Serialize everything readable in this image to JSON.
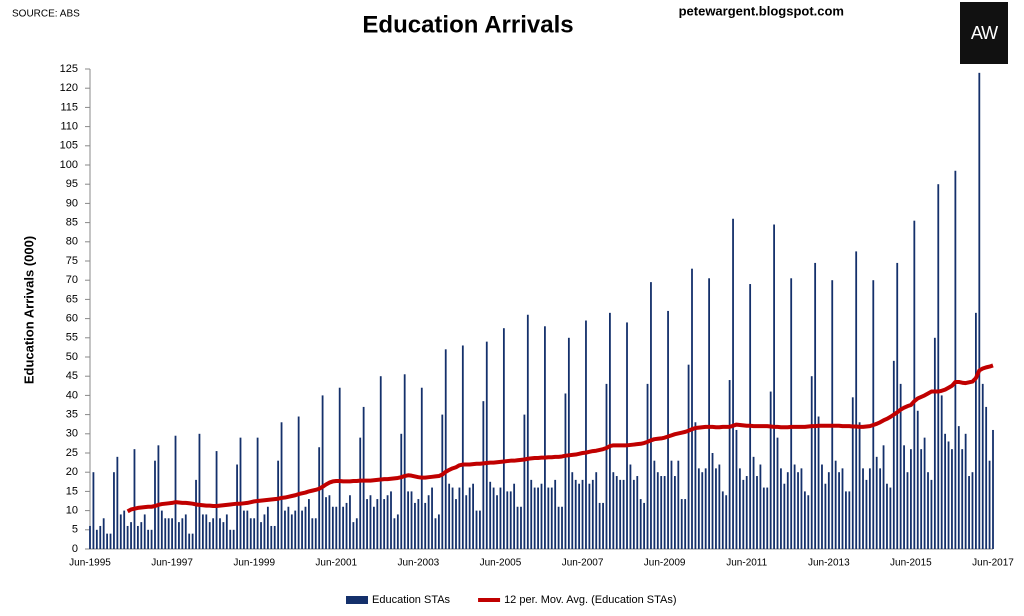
{
  "chart_data": {
    "type": "bar_line",
    "title": "Education Arrivals",
    "source": "SOURCE: ABS",
    "watermark": "petewargent.blogspot.com",
    "logo": "AW",
    "y_axis_label": "Education Arrivals (000)",
    "ylim": [
      0,
      125
    ],
    "yticks": [
      0,
      5,
      10,
      15,
      20,
      25,
      30,
      35,
      40,
      45,
      50,
      55,
      60,
      65,
      70,
      75,
      80,
      85,
      90,
      95,
      100,
      105,
      110,
      115,
      120,
      125
    ],
    "grid": false,
    "legend": "bottom",
    "categories": [
      "Jun-1995",
      null,
      null,
      null,
      null,
      null,
      null,
      null,
      null,
      null,
      null,
      null,
      null,
      null,
      null,
      null,
      null,
      null,
      null,
      null,
      null,
      null,
      null,
      null,
      "Jun-1997",
      null,
      null,
      null,
      null,
      null,
      null,
      null,
      null,
      null,
      null,
      null,
      null,
      null,
      null,
      null,
      null,
      null,
      null,
      null,
      null,
      null,
      null,
      null,
      "Jun-1999",
      null,
      null,
      null,
      null,
      null,
      null,
      null,
      null,
      null,
      null,
      null,
      null,
      null,
      null,
      null,
      null,
      null,
      null,
      null,
      null,
      null,
      null,
      null,
      "Jun-2001",
      null,
      null,
      null,
      null,
      null,
      null,
      null,
      null,
      null,
      null,
      null,
      null,
      null,
      null,
      null,
      null,
      null,
      null,
      null,
      null,
      null,
      null,
      null,
      "Jun-2003",
      null,
      null,
      null,
      null,
      null,
      null,
      null,
      null,
      null,
      null,
      null,
      null,
      null,
      null,
      null,
      null,
      null,
      null,
      null,
      null,
      null,
      null,
      null,
      "Jun-2005",
      null,
      null,
      null,
      null,
      null,
      null,
      null,
      null,
      null,
      null,
      null,
      null,
      null,
      null,
      null,
      null,
      null,
      null,
      null,
      null,
      null,
      null,
      null,
      "Jun-2007",
      null,
      null,
      null,
      null,
      null,
      null,
      null,
      null,
      null,
      null,
      null,
      null,
      null,
      null,
      null,
      null,
      null,
      null,
      null,
      null,
      null,
      null,
      null,
      "Jun-2009",
      null,
      null,
      null,
      null,
      null,
      null,
      null,
      null,
      null,
      null,
      null,
      null,
      null,
      null,
      null,
      null,
      null,
      null,
      null,
      null,
      null,
      null,
      null,
      "Jun-2011",
      null,
      null,
      null,
      null,
      null,
      null,
      null,
      null,
      null,
      null,
      null,
      null,
      null,
      null,
      null,
      null,
      null,
      null,
      null,
      null,
      null,
      null,
      null,
      "Jun-2013",
      null,
      null,
      null,
      null,
      null,
      null,
      null,
      null,
      null,
      null,
      null,
      null,
      null,
      null,
      null,
      null,
      null,
      null,
      null,
      null,
      null,
      null,
      null,
      "Jun-2015",
      null,
      null,
      null,
      null,
      null,
      null,
      null,
      null,
      null,
      null,
      null,
      null,
      null,
      null,
      null,
      null,
      null,
      null,
      null,
      null,
      null,
      null,
      null,
      "Jun-2017"
    ],
    "series": [
      {
        "name": "Education STAs",
        "type": "bar",
        "color": "#14306b",
        "values": [
          6,
          20,
          5,
          6,
          8,
          4,
          4,
          20,
          24,
          9,
          10,
          6,
          7,
          26,
          6,
          7,
          9,
          5,
          5,
          23,
          27,
          10,
          8,
          8,
          8,
          29.5,
          7,
          8,
          9,
          4,
          4,
          18,
          30,
          9,
          9,
          7,
          8,
          25.5,
          8,
          7,
          9,
          5,
          5,
          22,
          29,
          10,
          10,
          8,
          8,
          29,
          7,
          9,
          11,
          6,
          6,
          23,
          33,
          10,
          11,
          9,
          10,
          34.5,
          10,
          11,
          13,
          8,
          8,
          26.5,
          40,
          13.5,
          14,
          11,
          11,
          42,
          11,
          12,
          14,
          7,
          8,
          29,
          37,
          13,
          14,
          11,
          13,
          45,
          13,
          14,
          15,
          8,
          9,
          30,
          45.5,
          15,
          15,
          12,
          13,
          42,
          12,
          14,
          16,
          8,
          9,
          35,
          52,
          17,
          16,
          13,
          16,
          53,
          14,
          16,
          17,
          10,
          10,
          38.5,
          54,
          17.5,
          16,
          14,
          16,
          57.5,
          15,
          15,
          17,
          11,
          11,
          35,
          61,
          18,
          16,
          16,
          17,
          58,
          16,
          16,
          18,
          11,
          11,
          40.5,
          55,
          20,
          18,
          17,
          18,
          59.5,
          17,
          18,
          20,
          12,
          12,
          43,
          61.5,
          20,
          19,
          18,
          18,
          59,
          22,
          18,
          19,
          13,
          12,
          43,
          69.5,
          23,
          20,
          19,
          19,
          62,
          23,
          19,
          23,
          13,
          13,
          48,
          73,
          33,
          21,
          20,
          21,
          70.5,
          25,
          21,
          22,
          15,
          14,
          44,
          86,
          31,
          21,
          18,
          19,
          69,
          24,
          19,
          22,
          16,
          16,
          41,
          84.5,
          29,
          21,
          17,
          20,
          70.5,
          22,
          20,
          21,
          15,
          14,
          45,
          74.5,
          34.5,
          22,
          17,
          20,
          70,
          23,
          20,
          21,
          15,
          15,
          39.5,
          77.5,
          33,
          21,
          18,
          21,
          70,
          24,
          21,
          27,
          17,
          16,
          49,
          74.5,
          43,
          27,
          20,
          26,
          85.5,
          36,
          26,
          29,
          20,
          18,
          55,
          95,
          40,
          30,
          28,
          26,
          98.5,
          32,
          26,
          30,
          19,
          20,
          61.5,
          124,
          43,
          37,
          23,
          31
        ]
      },
      {
        "name": "12 per. Mov. Avg. (Education STAs)",
        "type": "line",
        "color": "#c00000",
        "values": [
          null,
          null,
          null,
          null,
          null,
          null,
          null,
          null,
          null,
          null,
          null,
          9.8,
          10.3,
          10.5,
          10.7,
          10.8,
          10.9,
          11.0,
          11.0,
          11.2,
          11.5,
          11.7,
          11.8,
          11.9,
          12.0,
          12.2,
          12.1,
          12.0,
          12.0,
          11.9,
          11.8,
          11.6,
          11.5,
          11.4,
          11.3,
          11.3,
          11.2,
          11.2,
          11.3,
          11.4,
          11.5,
          11.6,
          11.7,
          11.8,
          11.8,
          11.9,
          12.0,
          12.2,
          12.4,
          12.5,
          12.6,
          12.7,
          12.8,
          12.9,
          13.0,
          13.1,
          13.3,
          13.4,
          13.6,
          13.8,
          14.0,
          14.3,
          14.5,
          14.7,
          15.0,
          15.2,
          15.4,
          15.7,
          16.2,
          16.8,
          17.3,
          17.6,
          17.7,
          17.7,
          17.6,
          17.6,
          17.6,
          17.7,
          17.7,
          17.8,
          17.8,
          17.8,
          17.8,
          17.9,
          18.0,
          18.1,
          18.2,
          18.2,
          18.3,
          18.4,
          18.5,
          18.7,
          19.0,
          19.2,
          19.1,
          18.9,
          18.7,
          18.6,
          18.6,
          18.7,
          18.8,
          18.9,
          19.0,
          19.4,
          20.1,
          20.6,
          21.0,
          21.3,
          21.8,
          22.0,
          22.0,
          22.0,
          22.1,
          22.2,
          22.2,
          22.3,
          22.4,
          22.5,
          22.5,
          22.6,
          22.7,
          22.8,
          22.9,
          23.0,
          23.0,
          23.1,
          23.2,
          23.3,
          23.5,
          23.6,
          23.7,
          23.7,
          23.8,
          23.8,
          23.9,
          23.9,
          24.0,
          24.0,
          24.1,
          24.3,
          24.4,
          24.5,
          24.6,
          24.8,
          25.0,
          25.1,
          25.3,
          25.5,
          25.6,
          25.8,
          26.0,
          26.3,
          26.8,
          27.0,
          27.0,
          27.0,
          27.0,
          27.0,
          27.1,
          27.2,
          27.3,
          27.4,
          27.6,
          27.9,
          28.3,
          28.6,
          28.7,
          28.8,
          29.0,
          29.3,
          29.6,
          29.9,
          30.1,
          30.3,
          30.5,
          30.8,
          31.2,
          31.5,
          31.6,
          31.7,
          31.8,
          31.8,
          31.8,
          31.7,
          31.7,
          31.8,
          31.8,
          31.8,
          32.1,
          32.4,
          32.3,
          32.2,
          32.1,
          32.1,
          32.0,
          32.0,
          32.0,
          32.0,
          32.0,
          31.9,
          31.8,
          31.8,
          31.7,
          31.7,
          31.7,
          31.8,
          31.8,
          31.8,
          31.8,
          31.8,
          31.9,
          32.0,
          32.0,
          32.1,
          32.1,
          32.1,
          32.1,
          32.1,
          32.1,
          32.1,
          32.0,
          32.0,
          32.0,
          31.9,
          31.9,
          31.8,
          31.8,
          31.9,
          32.0,
          32.3,
          32.6,
          33.0,
          33.5,
          33.9,
          34.4,
          35.0,
          35.6,
          36.3,
          36.8,
          37.2,
          37.5,
          38.5,
          39.2,
          39.6,
          40.0,
          40.5,
          41.0,
          41.0,
          41.0,
          41.2,
          41.5,
          42.0,
          42.5,
          43.5,
          43.5,
          43.3,
          43.2,
          43.4,
          43.6,
          44.5,
          46.5,
          47.0,
          47.3,
          47.5,
          47.8
        ]
      }
    ]
  }
}
